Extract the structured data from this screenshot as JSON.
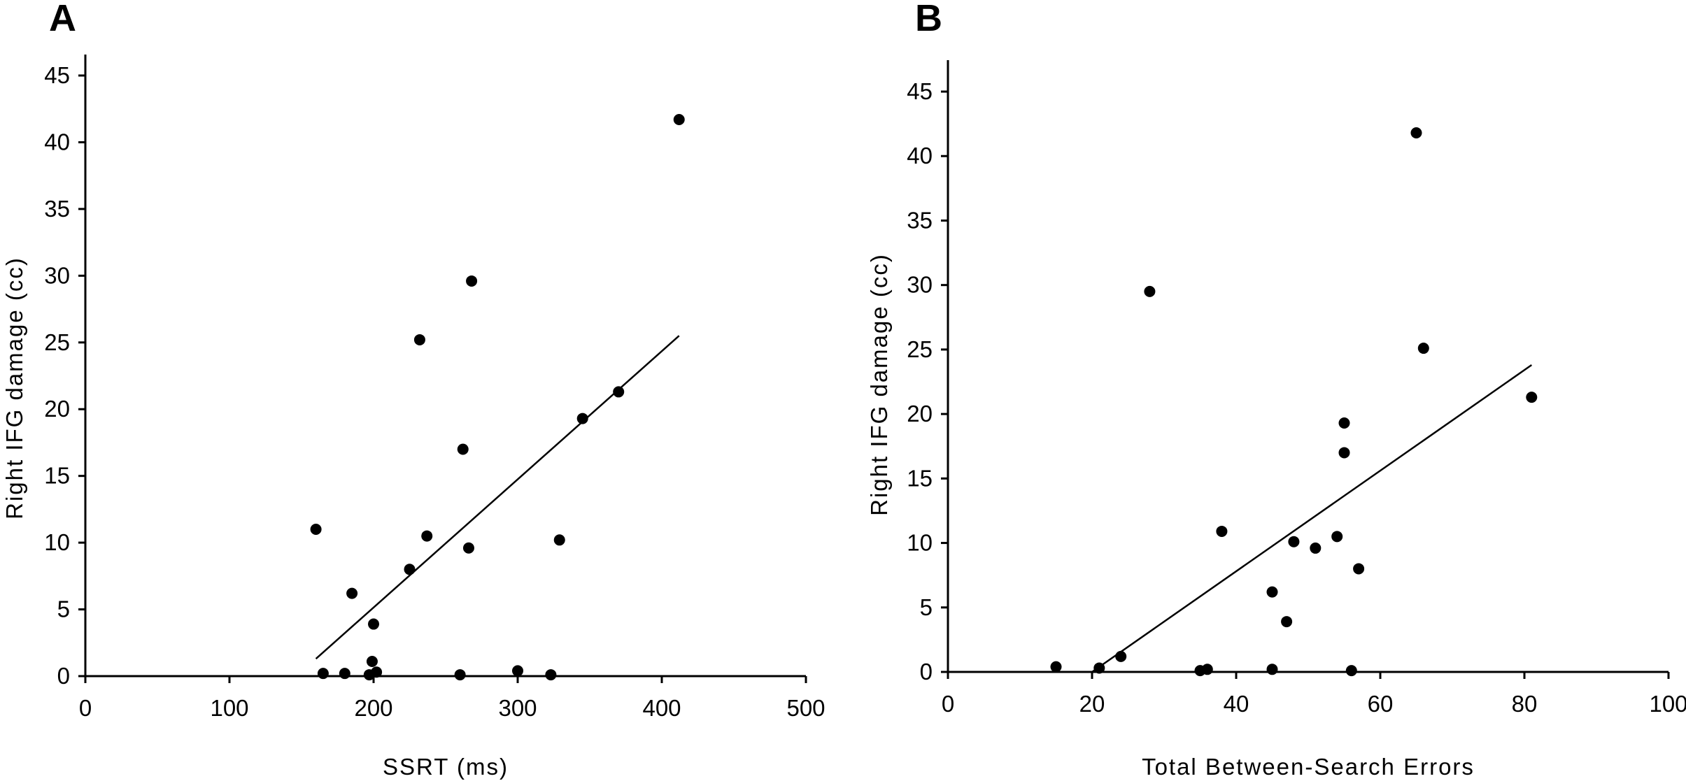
{
  "chart_data": [
    {
      "type": "scatter",
      "panel": "A",
      "xlabel": "SSRT (ms)",
      "ylabel": "Right IFG damage (cc)",
      "xlim": [
        0,
        500
      ],
      "ylim": [
        0,
        45
      ],
      "xticks": [
        0,
        100,
        200,
        300,
        400,
        500
      ],
      "yticks": [
        0,
        5,
        10,
        15,
        20,
        25,
        30,
        35,
        40,
        45
      ],
      "grid": false,
      "points": [
        {
          "x": 160,
          "y": 11
        },
        {
          "x": 165,
          "y": 0.2
        },
        {
          "x": 180,
          "y": 0.2
        },
        {
          "x": 185,
          "y": 6.2
        },
        {
          "x": 197,
          "y": 0.1
        },
        {
          "x": 199,
          "y": 1.1
        },
        {
          "x": 200,
          "y": 3.9
        },
        {
          "x": 202,
          "y": 0.3
        },
        {
          "x": 225,
          "y": 8
        },
        {
          "x": 232,
          "y": 25.2
        },
        {
          "x": 237,
          "y": 10.5
        },
        {
          "x": 260,
          "y": 0.1
        },
        {
          "x": 262,
          "y": 17
        },
        {
          "x": 266,
          "y": 9.6
        },
        {
          "x": 268,
          "y": 29.6
        },
        {
          "x": 300,
          "y": 0.4
        },
        {
          "x": 323,
          "y": 0.1
        },
        {
          "x": 329,
          "y": 10.2
        },
        {
          "x": 345,
          "y": 19.3
        },
        {
          "x": 370,
          "y": 21.3
        },
        {
          "x": 412,
          "y": 41.7
        }
      ],
      "trendline": {
        "x": [
          160,
          412
        ],
        "y": [
          1.3,
          25.5
        ]
      }
    },
    {
      "type": "scatter",
      "panel": "B",
      "xlabel": "Total Between-Search Errors",
      "ylabel": "Right IFG damage (cc)",
      "xlim": [
        0,
        100
      ],
      "ylim": [
        0,
        45
      ],
      "xticks": [
        0,
        20,
        40,
        60,
        80,
        100
      ],
      "yticks": [
        0,
        5,
        10,
        15,
        20,
        25,
        30,
        35,
        40,
        45
      ],
      "grid": false,
      "points": [
        {
          "x": 15,
          "y": 0.4
        },
        {
          "x": 21,
          "y": 0.3
        },
        {
          "x": 24,
          "y": 1.2
        },
        {
          "x": 28,
          "y": 29.5
        },
        {
          "x": 35,
          "y": 0.1
        },
        {
          "x": 36,
          "y": 0.2
        },
        {
          "x": 38,
          "y": 10.9
        },
        {
          "x": 45,
          "y": 0.2
        },
        {
          "x": 45,
          "y": 6.2
        },
        {
          "x": 47,
          "y": 3.9
        },
        {
          "x": 48,
          "y": 10.1
        },
        {
          "x": 51,
          "y": 9.6
        },
        {
          "x": 54,
          "y": 10.5
        },
        {
          "x": 55,
          "y": 17
        },
        {
          "x": 55,
          "y": 19.3
        },
        {
          "x": 56,
          "y": 0.1
        },
        {
          "x": 57,
          "y": 8
        },
        {
          "x": 65,
          "y": 41.8
        },
        {
          "x": 66,
          "y": 25.1
        },
        {
          "x": 81,
          "y": 21.3
        }
      ],
      "trendline": {
        "x": [
          20,
          81
        ],
        "y": [
          0,
          23.8
        ]
      }
    }
  ],
  "panels": [
    {
      "label": "A"
    },
    {
      "label": "B"
    }
  ]
}
